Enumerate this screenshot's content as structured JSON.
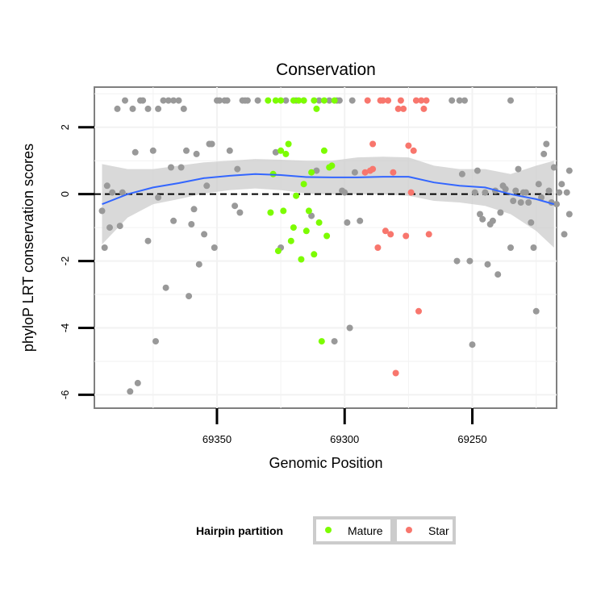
{
  "chart_data": {
    "type": "scatter",
    "title": "Conservation",
    "xlabel": "Genomic Position",
    "ylabel": "phyloP LRT conservation scores",
    "x_reversed": true,
    "xlim": [
      69217,
      69398
    ],
    "ylim": [
      -6.4,
      3.2
    ],
    "x_ticks": [
      69350,
      69300,
      69250
    ],
    "y_ticks": [
      2,
      0,
      -2,
      -4,
      -6
    ],
    "reference_line": {
      "y": 0,
      "style": "dashed"
    },
    "grid": true,
    "legend": {
      "title": "Hairpin partition",
      "placement": "bottom",
      "entries": [
        {
          "name": "Mature",
          "color": "#7cfc00"
        },
        {
          "name": "Star",
          "color": "#f8766d"
        }
      ]
    },
    "colors": {
      "other": "#999999",
      "Mature": "#7cfc00",
      "Star": "#f8766d",
      "smooth": "#3366ff",
      "band": "#cccccc"
    },
    "smooth_line": [
      [
        69395,
        -0.3
      ],
      [
        69385,
        0.0
      ],
      [
        69375,
        0.2
      ],
      [
        69365,
        0.33
      ],
      [
        69355,
        0.48
      ],
      [
        69345,
        0.55
      ],
      [
        69335,
        0.6
      ],
      [
        69325,
        0.57
      ],
      [
        69315,
        0.51
      ],
      [
        69305,
        0.5
      ],
      [
        69295,
        0.5
      ],
      [
        69285,
        0.52
      ],
      [
        69275,
        0.52
      ],
      [
        69265,
        0.35
      ],
      [
        69255,
        0.25
      ],
      [
        69245,
        0.2
      ],
      [
        69235,
        0.0
      ],
      [
        69225,
        -0.15
      ],
      [
        69218,
        -0.3
      ]
    ],
    "smooth_upper": [
      [
        69395,
        0.9
      ],
      [
        69385,
        0.75
      ],
      [
        69375,
        0.75
      ],
      [
        69365,
        0.85
      ],
      [
        69355,
        0.95
      ],
      [
        69345,
        1.0
      ],
      [
        69335,
        1.05
      ],
      [
        69325,
        1.03
      ],
      [
        69315,
        1.0
      ],
      [
        69305,
        1.0
      ],
      [
        69295,
        1.1
      ],
      [
        69285,
        1.12
      ],
      [
        69275,
        1.1
      ],
      [
        69265,
        0.85
      ],
      [
        69255,
        0.75
      ],
      [
        69245,
        0.75
      ],
      [
        69235,
        0.6
      ],
      [
        69225,
        0.85
      ],
      [
        69218,
        1.0
      ]
    ],
    "smooth_lower": [
      [
        69395,
        -1.5
      ],
      [
        69385,
        -0.7
      ],
      [
        69375,
        -0.3
      ],
      [
        69365,
        -0.15
      ],
      [
        69355,
        0.02
      ],
      [
        69345,
        0.12
      ],
      [
        69335,
        0.17
      ],
      [
        69325,
        0.12
      ],
      [
        69315,
        0.02
      ],
      [
        69305,
        0.0
      ],
      [
        69295,
        0.0
      ],
      [
        69285,
        0.0
      ],
      [
        69275,
        -0.05
      ],
      [
        69265,
        -0.2
      ],
      [
        69255,
        -0.25
      ],
      [
        69245,
        -0.35
      ],
      [
        69235,
        -0.6
      ],
      [
        69225,
        -1.1
      ],
      [
        69218,
        -1.6
      ]
    ],
    "series": [
      {
        "name": "",
        "group": "other",
        "points": [
          [
            69395,
            -0.5
          ],
          [
            69394,
            -1.6
          ],
          [
            69393,
            0.25
          ],
          [
            69392,
            -1.0
          ],
          [
            69391,
            0.05
          ],
          [
            69389,
            2.55
          ],
          [
            69388,
            -0.95
          ],
          [
            69387,
            0.05
          ],
          [
            69386,
            2.8
          ],
          [
            69384,
            -5.9
          ],
          [
            69383,
            2.55
          ],
          [
            69382,
            1.25
          ],
          [
            69381,
            -5.65
          ],
          [
            69380,
            2.8
          ],
          [
            69379,
            2.8
          ],
          [
            69377,
            -1.4
          ],
          [
            69377,
            2.55
          ],
          [
            69375,
            1.3
          ],
          [
            69374,
            -4.4
          ],
          [
            69373,
            -0.1
          ],
          [
            69373,
            2.55
          ],
          [
            69371,
            2.8
          ],
          [
            69370,
            -2.8
          ],
          [
            69369,
            2.8
          ],
          [
            69368,
            0.8
          ],
          [
            69367,
            2.8
          ],
          [
            69367,
            -0.8
          ],
          [
            69365,
            2.8
          ],
          [
            69364,
            0.8
          ],
          [
            69363,
            2.55
          ],
          [
            69362,
            1.3
          ],
          [
            69361,
            -3.05
          ],
          [
            69360,
            -0.9
          ],
          [
            69359,
            -0.45
          ],
          [
            69358,
            1.2
          ],
          [
            69357,
            -2.1
          ],
          [
            69355,
            -1.2
          ],
          [
            69354,
            0.25
          ],
          [
            69353,
            1.5
          ],
          [
            69352,
            1.5
          ],
          [
            69351,
            -1.6
          ],
          [
            69350,
            2.8
          ],
          [
            69349,
            2.8
          ],
          [
            69347,
            2.8
          ],
          [
            69346,
            2.8
          ],
          [
            69345,
            1.3
          ],
          [
            69343,
            -0.35
          ],
          [
            69342,
            0.75
          ],
          [
            69341,
            -0.55
          ],
          [
            69340,
            2.8
          ],
          [
            69339,
            2.8
          ],
          [
            69338,
            2.8
          ],
          [
            69334,
            2.8
          ],
          [
            69327,
            1.25
          ],
          [
            69325,
            -1.6
          ],
          [
            69323,
            2.8
          ],
          [
            69319,
            2.8
          ],
          [
            69316,
            2.8
          ],
          [
            69313,
            -0.65
          ],
          [
            69311,
            0.7
          ],
          [
            69310,
            2.8
          ],
          [
            69306,
            2.8
          ],
          [
            69304,
            -4.4
          ],
          [
            69303,
            2.8
          ],
          [
            69302,
            2.8
          ],
          [
            69301,
            0.1
          ],
          [
            69300,
            0.05
          ],
          [
            69299,
            -0.85
          ],
          [
            69298,
            -4.0
          ],
          [
            69297,
            2.8
          ],
          [
            69296,
            0.65
          ],
          [
            69294,
            -0.8
          ],
          [
            69258,
            2.8
          ],
          [
            69256,
            -2.0
          ],
          [
            69255,
            2.8
          ],
          [
            69254,
            0.6
          ],
          [
            69253,
            2.8
          ],
          [
            69251,
            -2.0
          ],
          [
            69250,
            -4.5
          ],
          [
            69249,
            0.05
          ],
          [
            69248,
            0.7
          ],
          [
            69247,
            -0.6
          ],
          [
            69246,
            -0.75
          ],
          [
            69245,
            0.05
          ],
          [
            69244,
            -2.1
          ],
          [
            69243,
            -0.9
          ],
          [
            69242,
            -0.8
          ],
          [
            69241,
            0.1
          ],
          [
            69240,
            -2.4
          ],
          [
            69239,
            -0.55
          ],
          [
            69238,
            0.25
          ],
          [
            69237,
            0.15
          ],
          [
            69235,
            -1.6
          ],
          [
            69235,
            2.8
          ],
          [
            69234,
            -0.2
          ],
          [
            69233,
            0.1
          ],
          [
            69232,
            0.75
          ],
          [
            69231,
            -0.25
          ],
          [
            69230,
            0.05
          ],
          [
            69229,
            0.05
          ],
          [
            69228,
            -0.25
          ],
          [
            69227,
            -0.85
          ],
          [
            69226,
            -1.6
          ],
          [
            69225,
            -3.5
          ],
          [
            69224,
            0.3
          ],
          [
            69223,
            -0.1
          ],
          [
            69222,
            1.2
          ],
          [
            69221,
            1.5
          ],
          [
            69220,
            0.1
          ],
          [
            69219,
            -0.25
          ],
          [
            69218,
            0.8
          ],
          [
            69217,
            -0.3
          ],
          [
            69216,
            0.05
          ],
          [
            69215,
            0.3
          ],
          [
            69214,
            -1.2
          ],
          [
            69213,
            0.05
          ],
          [
            69212,
            0.7
          ],
          [
            69212,
            -0.6
          ]
        ]
      },
      {
        "name": "Mature",
        "group": "Mature",
        "points": [
          [
            69330,
            2.8
          ],
          [
            69329,
            -0.55
          ],
          [
            69328,
            0.6
          ],
          [
            69327,
            2.8
          ],
          [
            69326,
            -1.7
          ],
          [
            69325,
            2.8
          ],
          [
            69325,
            1.3
          ],
          [
            69324,
            -0.5
          ],
          [
            69323,
            1.2
          ],
          [
            69322,
            1.5
          ],
          [
            69321,
            -1.4
          ],
          [
            69320,
            2.8
          ],
          [
            69320,
            -1.0
          ],
          [
            69319,
            -0.05
          ],
          [
            69318,
            2.8
          ],
          [
            69317,
            -1.95
          ],
          [
            69316,
            0.3
          ],
          [
            69316,
            2.8
          ],
          [
            69315,
            -1.1
          ],
          [
            69314,
            -0.5
          ],
          [
            69313,
            0.65
          ],
          [
            69312,
            2.8
          ],
          [
            69312,
            -1.8
          ],
          [
            69311,
            2.55
          ],
          [
            69310,
            -0.85
          ],
          [
            69309,
            -4.4
          ],
          [
            69308,
            1.3
          ],
          [
            69308,
            2.8
          ],
          [
            69307,
            -1.25
          ],
          [
            69306,
            0.8
          ],
          [
            69305,
            0.85
          ],
          [
            69304,
            2.8
          ]
        ]
      },
      {
        "name": "Star",
        "group": "Star",
        "points": [
          [
            69292,
            0.65
          ],
          [
            69291,
            2.8
          ],
          [
            69290,
            0.7
          ],
          [
            69289,
            0.75
          ],
          [
            69289,
            1.5
          ],
          [
            69287,
            -1.6
          ],
          [
            69286,
            2.8
          ],
          [
            69285,
            2.8
          ],
          [
            69284,
            -1.1
          ],
          [
            69283,
            2.8
          ],
          [
            69282,
            -1.2
          ],
          [
            69281,
            0.65
          ],
          [
            69280,
            -5.35
          ],
          [
            69279,
            2.55
          ],
          [
            69278,
            2.8
          ],
          [
            69277,
            2.55
          ],
          [
            69276,
            -1.25
          ],
          [
            69275,
            1.45
          ],
          [
            69274,
            0.05
          ],
          [
            69273,
            1.3
          ],
          [
            69272,
            2.8
          ],
          [
            69271,
            -3.5
          ],
          [
            69270,
            2.8
          ],
          [
            69269,
            2.55
          ],
          [
            69268,
            2.8
          ],
          [
            69267,
            -1.2
          ]
        ]
      }
    ]
  }
}
